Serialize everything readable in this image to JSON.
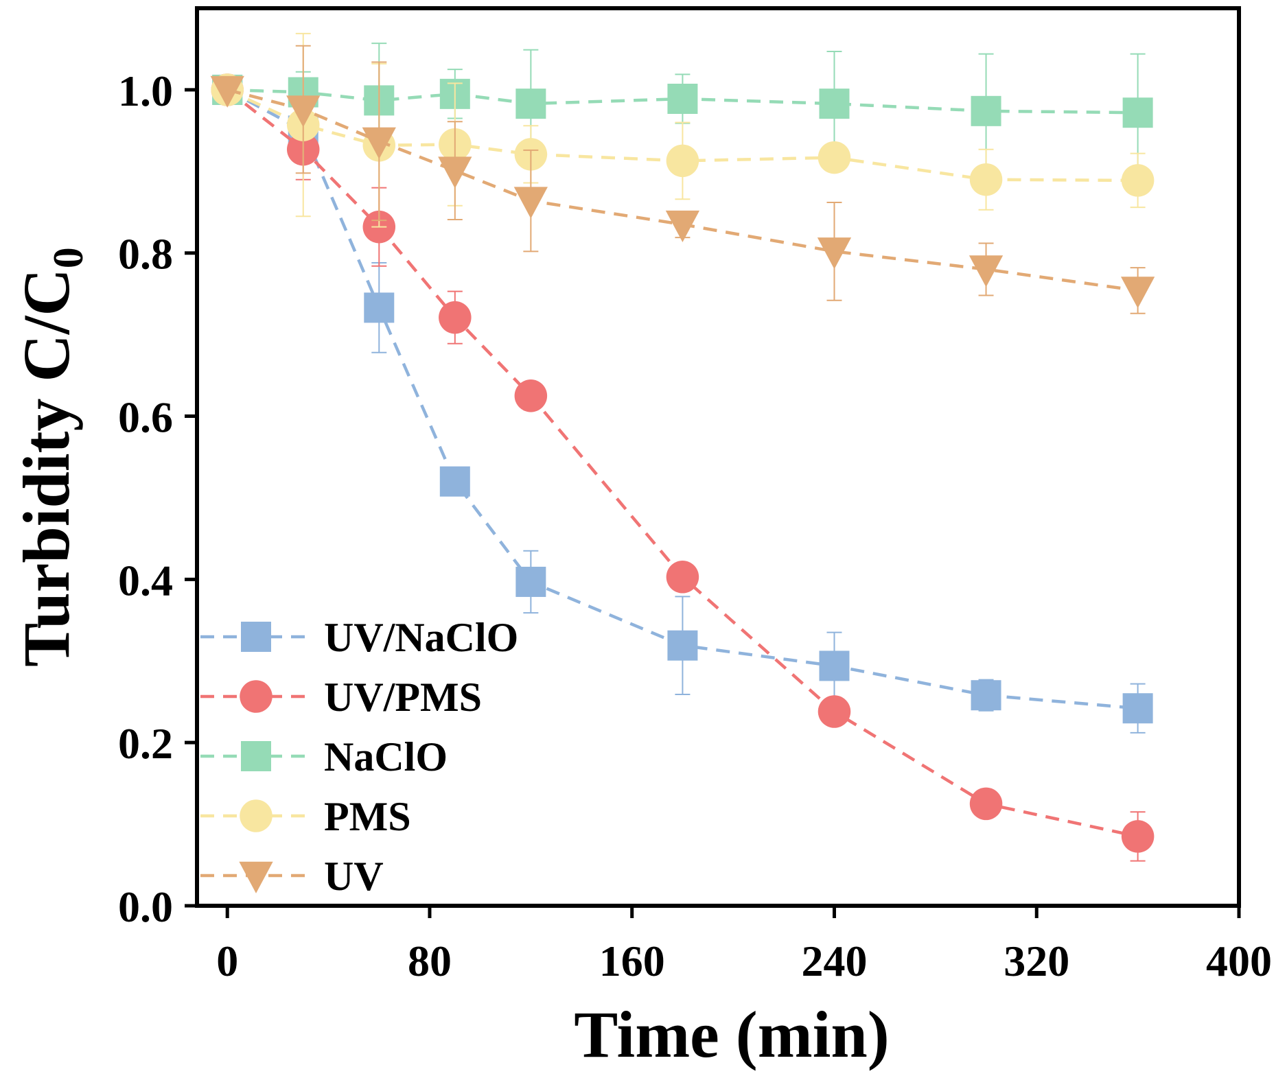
{
  "chart_data": {
    "type": "line",
    "xlabel": "Time (min)",
    "ylabel": {
      "main": "Turbidity C/C",
      "subscript": "0"
    },
    "xlim": [
      -12,
      400
    ],
    "ylim": [
      0,
      1.1
    ],
    "xticks": [
      0,
      80,
      160,
      240,
      320,
      400
    ],
    "xtick_labels": [
      "0",
      "80",
      "160",
      "240",
      "320",
      "400"
    ],
    "yticks": [
      0,
      0.2,
      0.4,
      0.6,
      0.8,
      1.0
    ],
    "ytick_labels": [
      "0.0",
      "0.2",
      "0.4",
      "0.6",
      "0.8",
      "1.0"
    ],
    "legend_position": "bottom-left",
    "grid": false,
    "series": [
      {
        "name": "UV/NaClO",
        "color": "#8fb3dc",
        "marker": "square",
        "x": [
          0,
          30,
          60,
          90,
          120,
          180,
          240,
          300,
          360
        ],
        "y": [
          1.0,
          0.95,
          0.733,
          0.52,
          0.397,
          0.319,
          0.294,
          0.258,
          0.242
        ],
        "err": [
          0.0,
          0.0,
          0.055,
          0.0,
          0.038,
          0.06,
          0.041,
          0.019,
          0.03
        ]
      },
      {
        "name": "UV/PMS",
        "color": "#f07474",
        "marker": "circle",
        "x": [
          0,
          30,
          60,
          90,
          120,
          180,
          240,
          300,
          360
        ],
        "y": [
          1.0,
          0.927,
          0.832,
          0.721,
          0.625,
          0.403,
          0.238,
          0.125,
          0.085
        ],
        "err": [
          0.0,
          0.037,
          0.048,
          0.032,
          0.0,
          0.0,
          0.0,
          0.0,
          0.03
        ]
      },
      {
        "name": "NaClO",
        "color": "#95dbb6",
        "marker": "square",
        "x": [
          0,
          30,
          60,
          90,
          120,
          180,
          240,
          300,
          360
        ],
        "y": [
          1.0,
          0.997,
          0.987,
          0.995,
          0.983,
          0.989,
          0.983,
          0.974,
          0.972
        ],
        "err": [
          0.0,
          0.025,
          0.07,
          0.03,
          0.066,
          0.03,
          0.064,
          0.07,
          0.072
        ]
      },
      {
        "name": "PMS",
        "color": "#f8e6a0",
        "marker": "circle",
        "x": [
          0,
          30,
          60,
          90,
          120,
          180,
          240,
          300,
          360
        ],
        "y": [
          1.0,
          0.957,
          0.932,
          0.933,
          0.921,
          0.913,
          0.917,
          0.89,
          0.889
        ],
        "err": [
          0.0,
          0.112,
          0.1,
          0.075,
          0.035,
          0.047,
          0.0,
          0.037,
          0.033
        ]
      },
      {
        "name": "UV",
        "color": "#e2a974",
        "marker": "triangle-down",
        "x": [
          0,
          30,
          60,
          90,
          120,
          180,
          240,
          300,
          360
        ],
        "y": [
          1.0,
          0.976,
          0.937,
          0.901,
          0.864,
          0.835,
          0.802,
          0.78,
          0.754
        ],
        "err": [
          0.0,
          0.078,
          0.097,
          0.06,
          0.062,
          0.016,
          0.06,
          0.032,
          0.028
        ]
      }
    ]
  }
}
